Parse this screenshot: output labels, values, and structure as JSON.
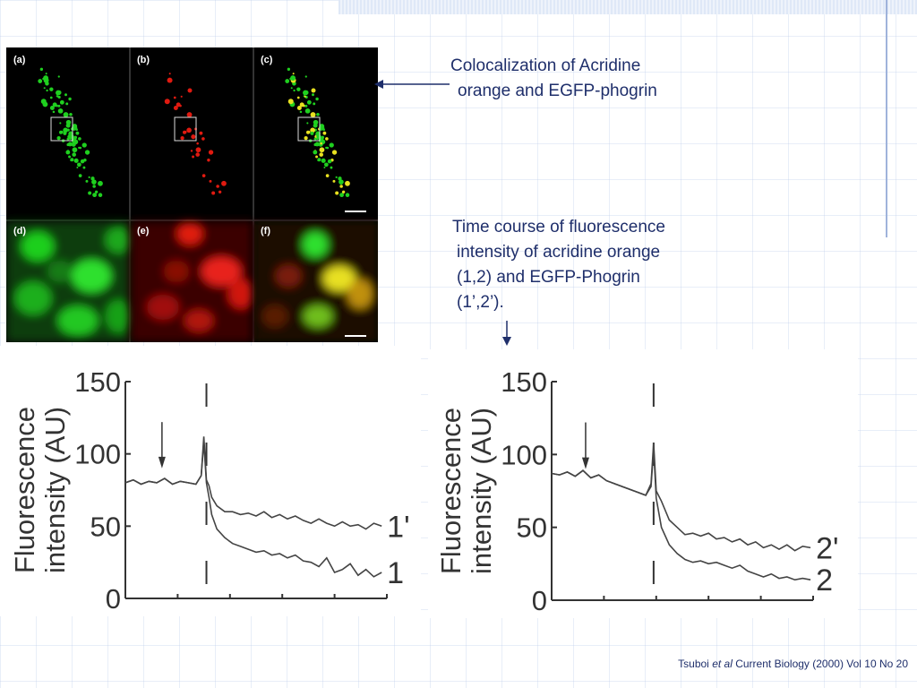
{
  "captions": {
    "colocalization": "Colocalization of Acridine orange and EGFP-phogrin",
    "colocalization_line1": "Colocalization of Acridine",
    "colocalization_line2": "orange and EGFP-phogrin",
    "timecourse_lines": [
      "Time course of fluorescence",
      "intensity of acridine orange",
      "(1,2) and EGFP-Phogrin",
      "(1’,2’)."
    ]
  },
  "micrograph": {
    "panel_labels": [
      "(a)",
      "(b)",
      "(c)",
      "(d)",
      "(e)",
      "(f)"
    ],
    "colors": {
      "green": "#1fcf1f",
      "red": "#e01a10",
      "yellow": "#e8e020"
    }
  },
  "citation": {
    "author": "Tsuboi",
    "etal": "et al",
    "rest": "Current Biology (2000) Vol 10 No 20"
  },
  "chart_data": [
    {
      "type": "line",
      "ylabel_line1": "Fluorescence",
      "ylabel_line2": "intensity (AU)",
      "yticks": [
        0,
        50,
        100,
        150
      ],
      "ylim": [
        0,
        150
      ],
      "xlim": [
        0,
        100
      ],
      "stimulus_arrow_x": 14,
      "dashed_line_x": 31,
      "series": [
        {
          "name": "1'",
          "x": [
            0,
            3,
            6,
            9,
            12,
            15,
            18,
            21,
            24,
            27,
            29,
            30,
            31,
            32,
            33,
            35,
            38,
            41,
            44,
            47,
            50,
            53,
            56,
            59,
            62,
            65,
            68,
            71,
            74,
            77,
            80,
            83,
            86,
            89,
            92,
            95,
            98
          ],
          "values": [
            80,
            82,
            79,
            81,
            80,
            83,
            79,
            81,
            80,
            79,
            85,
            112,
            82,
            78,
            70,
            64,
            60,
            60,
            58,
            59,
            57,
            60,
            56,
            58,
            55,
            57,
            54,
            52,
            55,
            52,
            50,
            53,
            50,
            51,
            48,
            52,
            50
          ]
        },
        {
          "name": "1",
          "x": [
            0,
            3,
            6,
            9,
            12,
            15,
            18,
            21,
            24,
            27,
            29,
            30,
            31,
            32,
            33,
            35,
            38,
            41,
            44,
            47,
            50,
            53,
            56,
            59,
            62,
            65,
            68,
            71,
            74,
            77,
            80,
            83,
            86,
            89,
            92,
            95,
            98
          ],
          "values": [
            80,
            82,
            79,
            81,
            80,
            83,
            79,
            81,
            80,
            79,
            85,
            108,
            80,
            70,
            58,
            48,
            42,
            38,
            36,
            34,
            32,
            33,
            30,
            31,
            28,
            30,
            26,
            25,
            22,
            28,
            18,
            20,
            24,
            16,
            20,
            15,
            18
          ]
        }
      ]
    },
    {
      "type": "line",
      "ylabel_line1": "Fluorescence",
      "ylabel_line2": "intensity (AU)",
      "yticks": [
        0,
        50,
        100,
        150
      ],
      "ylim": [
        0,
        150
      ],
      "xlim": [
        0,
        100
      ],
      "stimulus_arrow_x": 13,
      "dashed_line_x": 39,
      "series": [
        {
          "name": "2'",
          "x": [
            0,
            3,
            6,
            9,
            12,
            15,
            18,
            21,
            24,
            27,
            30,
            33,
            36,
            38,
            39,
            40,
            42,
            45,
            48,
            51,
            54,
            57,
            60,
            63,
            66,
            69,
            72,
            75,
            78,
            81,
            84,
            87,
            90,
            93,
            96,
            99
          ],
          "values": [
            87,
            86,
            88,
            85,
            89,
            84,
            86,
            82,
            80,
            78,
            76,
            74,
            72,
            80,
            108,
            75,
            68,
            55,
            50,
            45,
            46,
            44,
            46,
            42,
            43,
            40,
            42,
            38,
            40,
            36,
            38,
            35,
            38,
            34,
            37,
            36
          ]
        },
        {
          "name": "2",
          "x": [
            0,
            3,
            6,
            9,
            12,
            15,
            18,
            21,
            24,
            27,
            30,
            33,
            36,
            38,
            39,
            40,
            42,
            45,
            48,
            51,
            54,
            57,
            60,
            63,
            66,
            69,
            72,
            75,
            78,
            81,
            84,
            87,
            90,
            93,
            96,
            99
          ],
          "values": [
            87,
            86,
            88,
            85,
            89,
            84,
            86,
            82,
            80,
            78,
            76,
            74,
            72,
            78,
            104,
            70,
            50,
            38,
            32,
            28,
            26,
            27,
            25,
            26,
            24,
            22,
            24,
            20,
            18,
            16,
            18,
            15,
            16,
            14,
            15,
            14
          ]
        }
      ]
    }
  ]
}
